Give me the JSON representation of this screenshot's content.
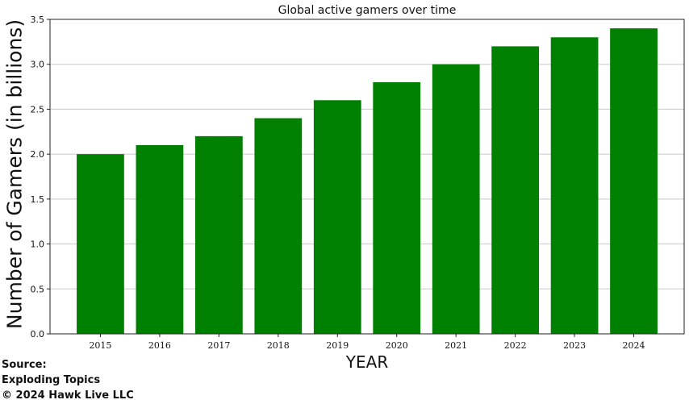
{
  "chart_data": {
    "type": "bar",
    "title": "Global active gamers over time",
    "xlabel": "YEAR",
    "ylabel": "Number of Gamers (in billions)",
    "categories": [
      "2015",
      "2016",
      "2017",
      "2018",
      "2019",
      "2020",
      "2021",
      "2022",
      "2023",
      "2024"
    ],
    "values": [
      2.0,
      2.1,
      2.2,
      2.4,
      2.6,
      2.8,
      3.0,
      3.2,
      3.3,
      3.4
    ],
    "ylim": [
      0,
      3.5
    ],
    "yticks": [
      "0.0",
      "0.5",
      "1.0",
      "1.5",
      "2.0",
      "2.5",
      "3.0",
      "3.5"
    ],
    "grid": "horizontal",
    "bar_color": "#008000"
  },
  "source": {
    "label": "Source:",
    "name": "Exploding Topics",
    "copyright": "© 2024 Hawk Live LLC"
  }
}
